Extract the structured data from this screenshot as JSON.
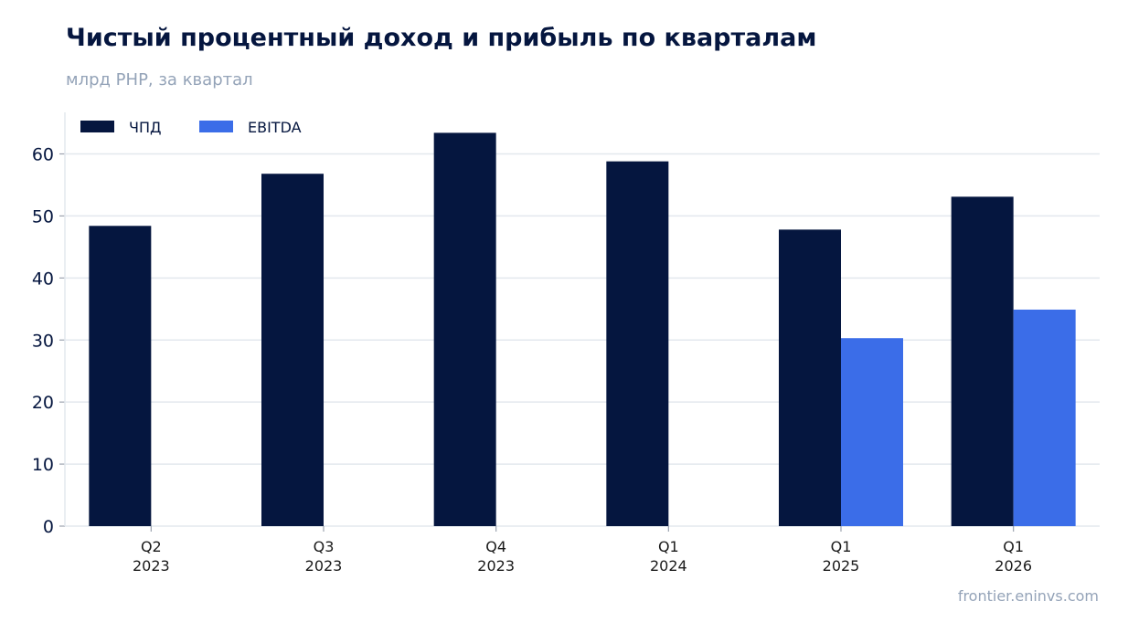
{
  "title": "Чистый процентный доход и прибыль по кварталам",
  "subtitle": "млрд РНР, за квартал",
  "source": "frontier.eninvs.com",
  "chart_data": {
    "type": "bar",
    "categories": [
      [
        "Q2",
        "2023"
      ],
      [
        "Q3",
        "2023"
      ],
      [
        "Q4",
        "2023"
      ],
      [
        "Q1",
        "2024"
      ],
      [
        "Q1",
        "2025"
      ],
      [
        "Q1",
        "2026"
      ]
    ],
    "series": [
      {
        "name": "ЧПД",
        "color": "#05163f",
        "values": [
          48.4,
          56.8,
          63.4,
          58.8,
          47.8,
          53.1
        ]
      },
      {
        "name": "EBITDA",
        "color": "#3b6de8",
        "values": [
          null,
          null,
          null,
          null,
          30.3,
          34.9
        ]
      }
    ],
    "ylim": [
      0,
      66.7
    ],
    "yticks": [
      0,
      10,
      20,
      30,
      40,
      50,
      60
    ],
    "grid": true,
    "legend": "top-left"
  }
}
